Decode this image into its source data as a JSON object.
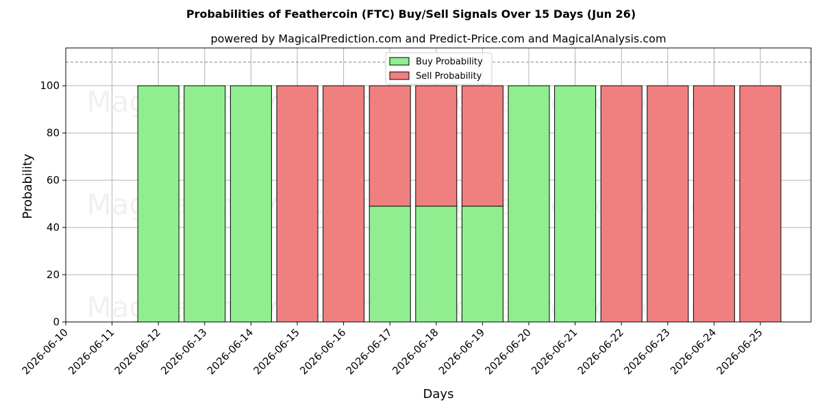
{
  "chart_data": {
    "type": "bar",
    "title": "Probabilities of Feathercoin (FTC) Buy/Sell Signals Over 15 Days (Jun 26)",
    "subtitle": "powered by MagicalPrediction.com and Predict-Price.com and MagicalAnalysis.com",
    "xlabel": "Days",
    "ylabel": "Probability",
    "x_tick_labels": [
      "2026-06-10",
      "2026-06-11",
      "2026-06-12",
      "2026-06-13",
      "2026-06-14",
      "2026-06-15",
      "2026-06-16",
      "2026-06-17",
      "2026-06-18",
      "2026-06-19",
      "2026-06-20",
      "2026-06-21",
      "2026-06-22",
      "2026-06-23",
      "2026-06-24",
      "2026-06-25"
    ],
    "categories": [
      "2026-06-12",
      "2026-06-13",
      "2026-06-14",
      "2026-06-15",
      "2026-06-16",
      "2026-06-17",
      "2026-06-18",
      "2026-06-19",
      "2026-06-20",
      "2026-06-21",
      "2026-06-22",
      "2026-06-23",
      "2026-06-24",
      "2026-06-25"
    ],
    "series": [
      {
        "name": "Buy Probability",
        "color": "#90ee90",
        "values": [
          100,
          100,
          100,
          0,
          0,
          49,
          49,
          49,
          100,
          100,
          0,
          0,
          0,
          0
        ]
      },
      {
        "name": "Sell Probability",
        "color": "#f08080",
        "values": [
          0,
          0,
          0,
          100,
          100,
          51,
          51,
          51,
          0,
          0,
          100,
          100,
          100,
          100
        ]
      }
    ],
    "stacked": true,
    "ylim": [
      0,
      116
    ],
    "yticks": [
      0,
      20,
      40,
      60,
      80,
      100
    ],
    "reference_line": 110,
    "grid": true,
    "legend_position": "top-center",
    "watermarks": [
      "MagicalAnalysis.com",
      "MagicalPrediction.com"
    ]
  }
}
